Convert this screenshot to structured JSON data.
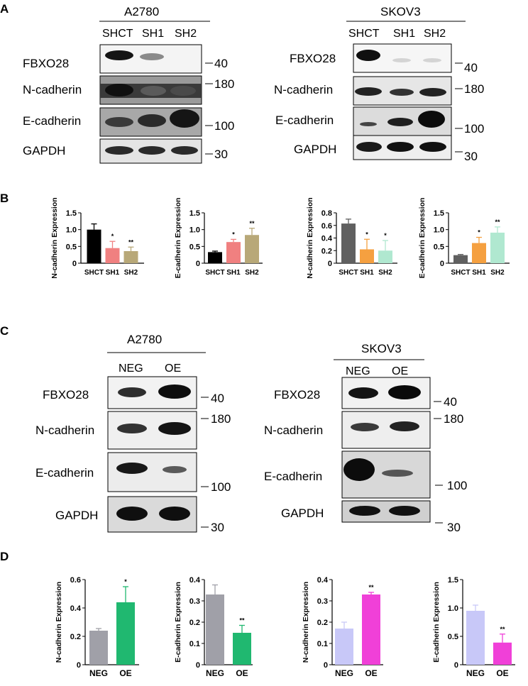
{
  "panel_labels": [
    "A",
    "B",
    "C",
    "D"
  ],
  "blots": [
    {
      "cell_line": "A2780",
      "lanes": [
        "SHCT",
        "SH1",
        "SH2"
      ],
      "rows": [
        {
          "protein": "FBXO28",
          "mw": "40"
        },
        {
          "protein": "N-cadherin",
          "mw": "180"
        },
        {
          "protein": "E-cadherin",
          "mw": "100"
        },
        {
          "protein": "GAPDH",
          "mw": "30"
        }
      ]
    },
    {
      "cell_line": "SKOV3",
      "lanes": [
        "SHCT",
        "SH1",
        "SH2"
      ],
      "rows": [
        {
          "protein": "FBXO28",
          "mw": "40"
        },
        {
          "protein": "N-cadherin",
          "mw": "180"
        },
        {
          "protein": "E-cadherin",
          "mw": "100"
        },
        {
          "protein": "GAPDH",
          "mw": "30"
        }
      ]
    },
    {
      "cell_line": "A2780",
      "lanes": [
        "NEG",
        "OE"
      ],
      "rows": [
        {
          "protein": "FBXO28",
          "mw": "40"
        },
        {
          "protein": "N-cadherin",
          "mw": "180"
        },
        {
          "protein": "E-cadherin",
          "mw": "100"
        },
        {
          "protein": "GAPDH",
          "mw": "30"
        }
      ]
    },
    {
      "cell_line": "SKOV3",
      "lanes": [
        "NEG",
        "OE"
      ],
      "rows": [
        {
          "protein": "FBXO28",
          "mw": "40"
        },
        {
          "protein": "N-cadherin",
          "mw": "180"
        },
        {
          "protein": "E-cadherin",
          "mw": "100"
        },
        {
          "protein": "GAPDH",
          "mw": "30"
        }
      ]
    }
  ],
  "chart_data": [
    {
      "type": "bar",
      "panel": "B",
      "ylabel": "N-cadherin Expression",
      "categories": [
        "SHCT",
        "SH1",
        "SH2"
      ],
      "values": [
        1.0,
        0.45,
        0.36
      ],
      "errors": [
        0.17,
        0.2,
        0.12
      ],
      "significance": [
        "",
        "*",
        "**"
      ],
      "colors": [
        "#000000",
        "#f08080",
        "#b8a878"
      ],
      "ylim": [
        0,
        1.5
      ],
      "yticks": [
        "0",
        "0.5",
        "1.0",
        "1.5"
      ]
    },
    {
      "type": "bar",
      "panel": "B",
      "ylabel": "E-cadherin Expression",
      "categories": [
        "SHCT",
        "SH1",
        "SH2"
      ],
      "values": [
        0.33,
        0.63,
        0.84
      ],
      "errors": [
        0.03,
        0.08,
        0.2
      ],
      "significance": [
        "",
        "*",
        "**"
      ],
      "colors": [
        "#000000",
        "#f08080",
        "#b8a878"
      ],
      "ylim": [
        0,
        1.5
      ],
      "yticks": [
        "0",
        "0.5",
        "1.0",
        "1.5"
      ]
    },
    {
      "type": "bar",
      "panel": "B",
      "ylabel": "N-cadherin Expression",
      "categories": [
        "SHCT",
        "SH1",
        "SH2"
      ],
      "values": [
        0.63,
        0.22,
        0.2
      ],
      "errors": [
        0.07,
        0.16,
        0.16
      ],
      "significance": [
        "",
        "*",
        "*"
      ],
      "colors": [
        "#606060",
        "#f5a040",
        "#b0e8d0"
      ],
      "ylim": [
        0,
        0.8
      ],
      "yticks": [
        "0",
        "0.2",
        "0.4",
        "0.6",
        "0.8"
      ]
    },
    {
      "type": "bar",
      "panel": "B",
      "ylabel": "E-cadherin Expression",
      "categories": [
        "SHCT",
        "SH1",
        "SH2"
      ],
      "values": [
        0.24,
        0.6,
        0.91
      ],
      "errors": [
        0.02,
        0.17,
        0.17
      ],
      "significance": [
        "",
        "*",
        "**"
      ],
      "colors": [
        "#606060",
        "#f5a040",
        "#b0e8d0"
      ],
      "ylim": [
        0,
        1.5
      ],
      "yticks": [
        "0",
        "0.5",
        "1.0",
        "1.5"
      ]
    },
    {
      "type": "bar",
      "panel": "D",
      "ylabel": "N-cadherin Expression",
      "categories": [
        "NEG",
        "OE"
      ],
      "values": [
        0.24,
        0.44
      ],
      "errors": [
        0.015,
        0.11
      ],
      "significance": [
        "",
        "*"
      ],
      "colors": [
        "#a0a0a8",
        "#20b870"
      ],
      "ylim": [
        0,
        0.6
      ],
      "yticks": [
        "0",
        "0.2",
        "0.4",
        "0.6"
      ]
    },
    {
      "type": "bar",
      "panel": "D",
      "ylabel": "E-cadherin Expression",
      "categories": [
        "NEG",
        "OE"
      ],
      "values": [
        0.33,
        0.15
      ],
      "errors": [
        0.045,
        0.035
      ],
      "significance": [
        "",
        "**"
      ],
      "colors": [
        "#a0a0a8",
        "#20b870"
      ],
      "ylim": [
        0,
        0.4
      ],
      "yticks": [
        "0",
        "0.1",
        "0.2",
        "0.3",
        "0.4"
      ]
    },
    {
      "type": "bar",
      "panel": "D",
      "ylabel": "N-cadherin Expression",
      "categories": [
        "NEG",
        "OE"
      ],
      "values": [
        0.17,
        0.33
      ],
      "errors": [
        0.03,
        0.01
      ],
      "significance": [
        "",
        "**"
      ],
      "colors": [
        "#c8c8f8",
        "#f040d8"
      ],
      "ylim": [
        0,
        0.4
      ],
      "yticks": [
        "0",
        "0.1",
        "0.2",
        "0.3",
        "0.4"
      ]
    },
    {
      "type": "bar",
      "panel": "D",
      "ylabel": "E-cadherin Expression",
      "categories": [
        "NEG",
        "OE"
      ],
      "values": [
        0.95,
        0.39
      ],
      "errors": [
        0.1,
        0.15
      ],
      "significance": [
        "",
        "**"
      ],
      "colors": [
        "#c8c8f8",
        "#f040d8"
      ],
      "ylim": [
        0,
        1.5
      ],
      "yticks": [
        "0",
        "0.5",
        "1.0",
        "1.5"
      ]
    }
  ]
}
